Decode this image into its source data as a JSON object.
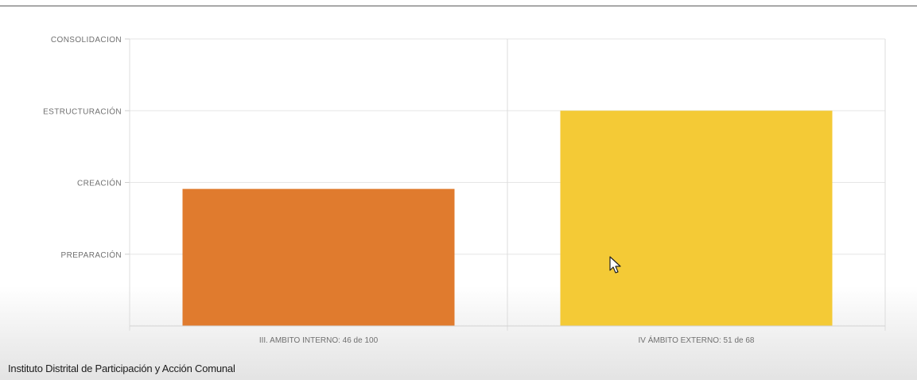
{
  "chart_data": {
    "type": "bar",
    "y_tick_labels": [
      "PREPARACIÓN",
      "CREACIÓN",
      "ESTRUCTURACIÓN",
      "CONSOLIDACION"
    ],
    "ylim": [
      0,
      4
    ],
    "categories": [
      "III. AMBITO INTERNO: 46 de 100",
      "IV ÁMBITO EXTERNO: 51 de 68"
    ],
    "values": [
      1.91,
      3.0
    ],
    "colors": [
      "#e07b2e",
      "#f4ca36"
    ],
    "grid": true
  },
  "footer": {
    "organization": "Instituto Distrital de Participación y Acción Comunal"
  },
  "colors": {
    "grid": "#e6e6e6",
    "axis_text": "#6f6f6f"
  }
}
